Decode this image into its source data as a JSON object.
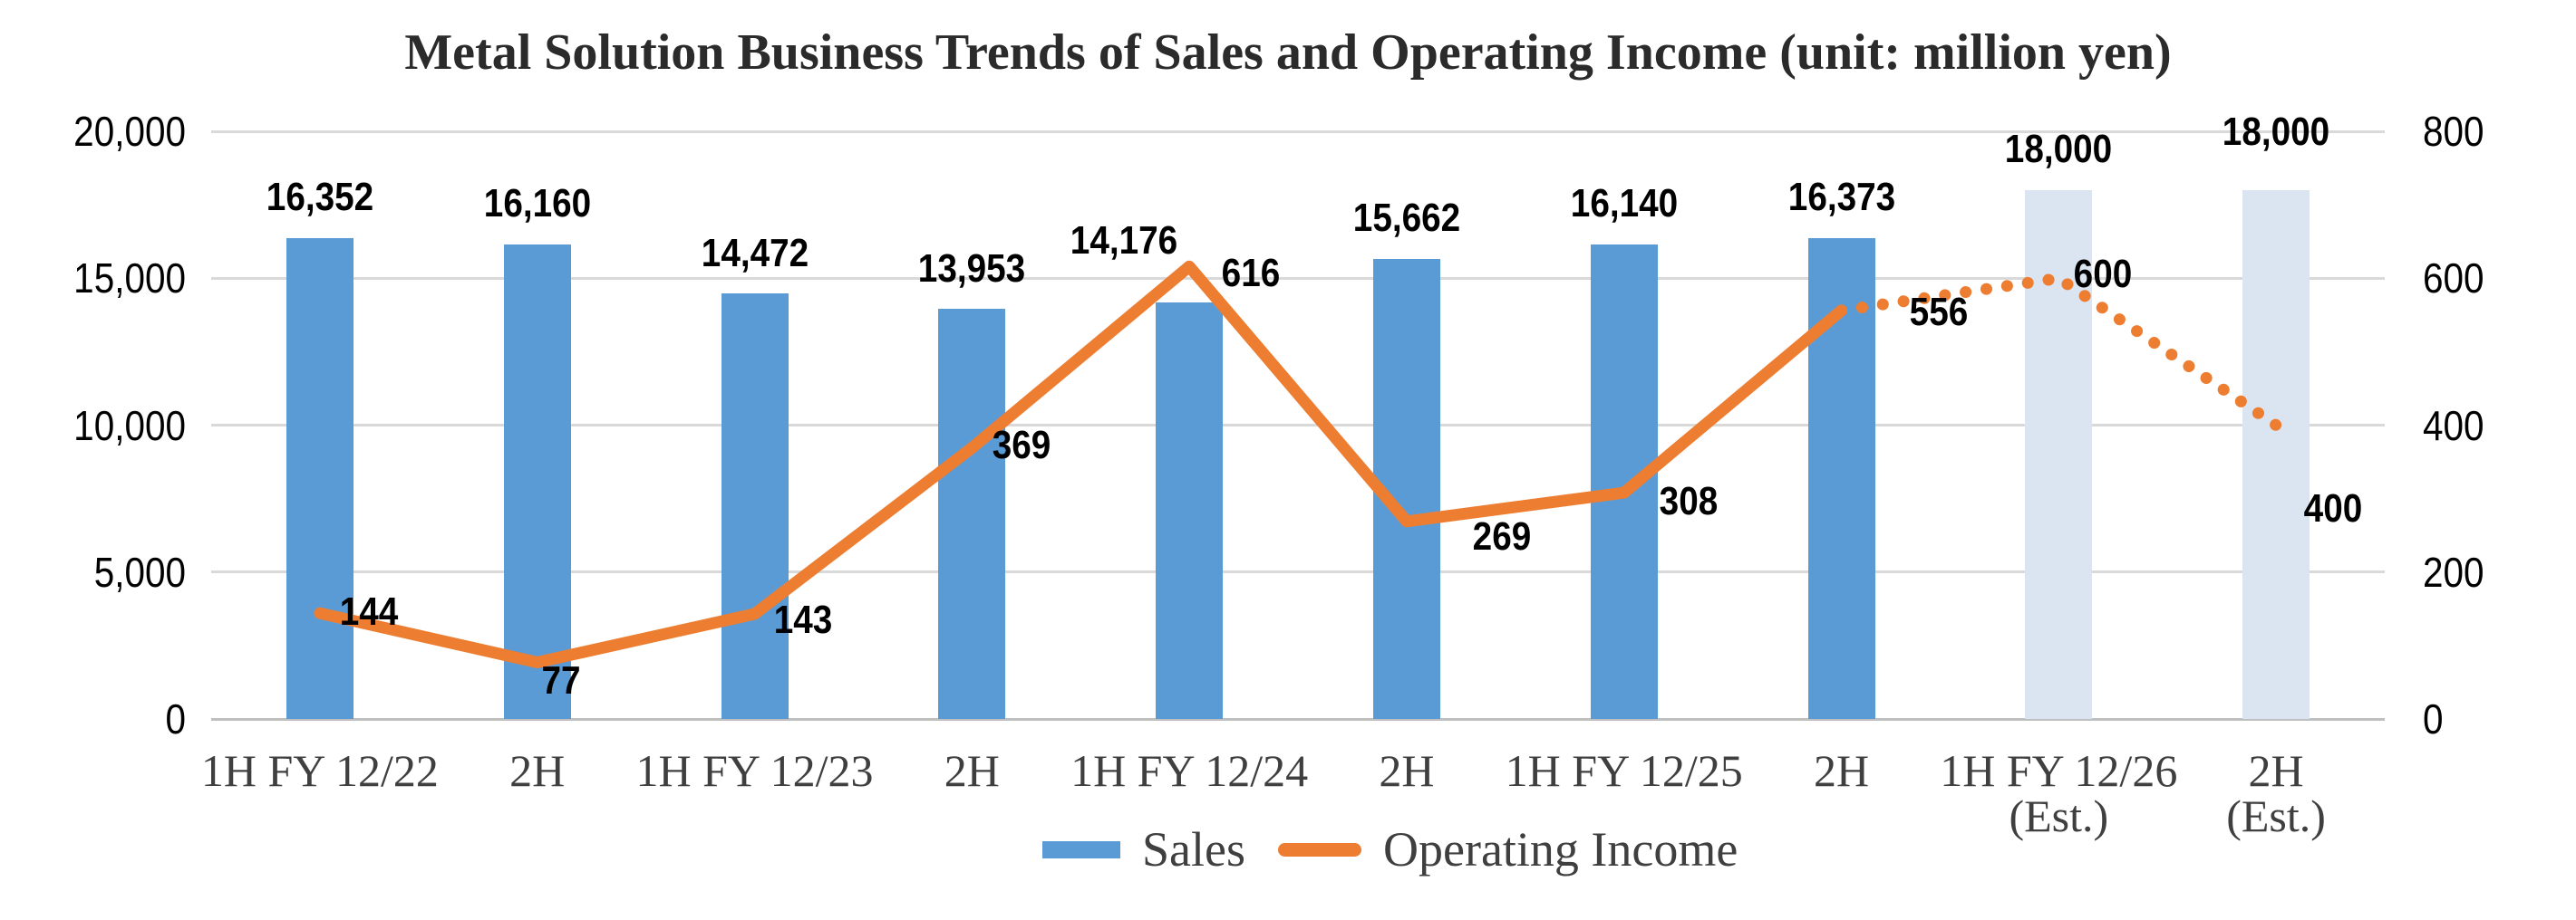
{
  "title": "Metal Solution Business Trends of Sales and Operating Income (unit: million yen)",
  "legend": {
    "items": [
      {
        "label": "Sales",
        "marker": "bar-swatch",
        "color": "#5B9BD5"
      },
      {
        "label": "Operating Income",
        "marker": "line-swatch",
        "color": "#ED7D31"
      }
    ]
  },
  "colors": {
    "sales_bar": "#5B9BD5",
    "sales_bar_estimate": "#DBE5F1",
    "operating_income_line": "#ED7D31",
    "gridline": "#D9D9D9",
    "axis_line": "#BFBFBF",
    "category_text": "#3F3F3F",
    "value_text": "#000000",
    "title_text": "#2B2B2B"
  },
  "chart_data": {
    "type": "bar",
    "subtype": "combo-bar-line-dual-axis",
    "title": "Metal Solution Business Trends of Sales and Operating Income (unit: million yen)",
    "unit": "million yen",
    "grid": true,
    "legend_position": "bottom",
    "categories": [
      "1H FY 12/22",
      "2H",
      "1H FY 12/23",
      "2H",
      "1H FY 12/24",
      "2H",
      "1H FY 12/25",
      "2H",
      "1H FY 12/26 (Est.)",
      "2H (Est.)"
    ],
    "categories_display": [
      {
        "line1": "1H FY 12/22"
      },
      {
        "line1": "2H"
      },
      {
        "line1": "1H FY 12/23"
      },
      {
        "line1": "2H"
      },
      {
        "line1": "1H FY 12/24"
      },
      {
        "line1": "2H"
      },
      {
        "line1": "1H FY 12/25"
      },
      {
        "line1": "2H"
      },
      {
        "line1": "1H FY 12/26",
        "line2": "(Est.)"
      },
      {
        "line1": "2H",
        "line2": "(Est.)"
      }
    ],
    "series": [
      {
        "name": "Sales",
        "type": "bar",
        "axis": "left",
        "values": [
          16352,
          16160,
          14472,
          13953,
          14176,
          15662,
          16140,
          16373,
          18000,
          18000
        ],
        "labels": [
          "16,352",
          "16,160",
          "14,472",
          "13,953",
          "14,176",
          "15,662",
          "16,140",
          "16,373",
          "18,000",
          "18,000"
        ],
        "estimate_indices": [
          8,
          9
        ]
      },
      {
        "name": "Operating Income",
        "type": "line",
        "axis": "right",
        "values": [
          144,
          77,
          143,
          369,
          616,
          269,
          308,
          556,
          600,
          400
        ],
        "labels": [
          "144",
          "77",
          "143",
          "369",
          "616",
          "269",
          "308",
          "556",
          "600",
          "400"
        ],
        "estimate_indices": [
          8,
          9
        ],
        "dotted_from_index": 7
      }
    ],
    "left_axis": {
      "min": 0,
      "max": 20000,
      "ticks": [
        {
          "v": 0,
          "label": "0"
        },
        {
          "v": 5000,
          "label": "5,000"
        },
        {
          "v": 10000,
          "label": "10,000"
        },
        {
          "v": 15000,
          "label": "15,000"
        },
        {
          "v": 20000,
          "label": "20,000"
        }
      ]
    },
    "right_axis": {
      "min": 0,
      "max": 800,
      "ticks": [
        {
          "v": 0,
          "label": "0"
        },
        {
          "v": 200,
          "label": "200"
        },
        {
          "v": 400,
          "label": "400"
        },
        {
          "v": 600,
          "label": "600"
        },
        {
          "v": 800,
          "label": "800"
        }
      ]
    }
  }
}
